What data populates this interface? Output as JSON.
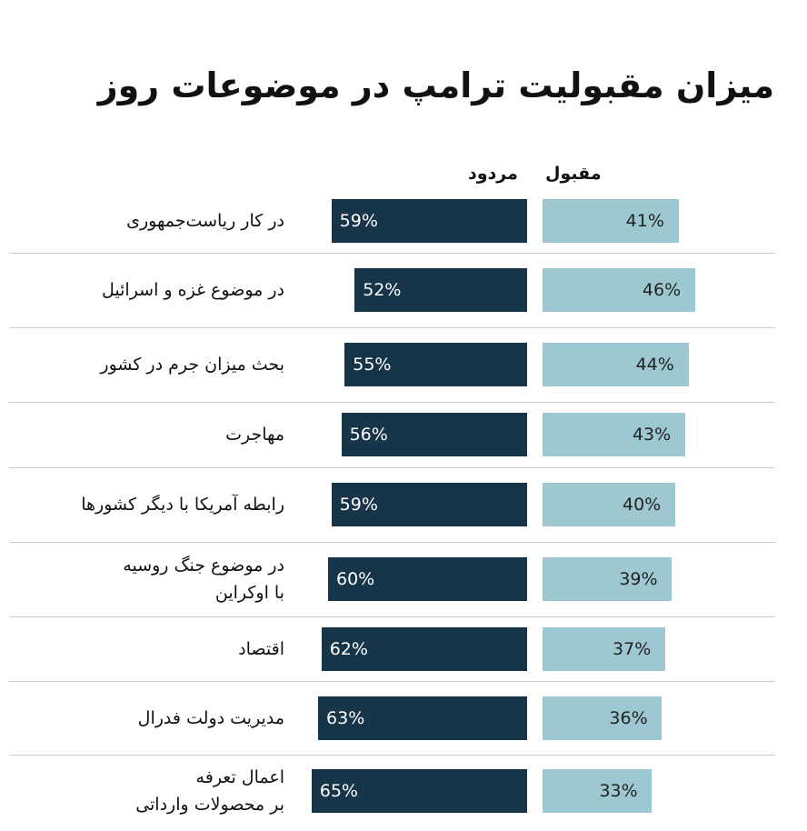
{
  "chart_data": {
    "type": "bar",
    "title": "میزان مقبولیت ترامپ در موضوعات روز",
    "categories": [
      "در کار ریاست‌جمهوری",
      "در موضوع غزه و اسرائیل",
      "بحث میزان جرم در کشور",
      "مهاجرت",
      "رابطه آمریکا با دیگر کشورها",
      "در موضوع جنگ روسیه\nبا اوکراین",
      "اقتصاد",
      "مدیریت دولت فدرال",
      "اعمال تعرفه\nبر محصولات وارداتی"
    ],
    "series": [
      {
        "name": "مقبول",
        "color": "#9dc8d1",
        "values": [
          41,
          46,
          44,
          43,
          40,
          39,
          37,
          36,
          33
        ],
        "value_labels": [
          "41%",
          "46%",
          "44%",
          "43%",
          "40%",
          "39%",
          "37%",
          "36%",
          "33%"
        ]
      },
      {
        "name": "مردود",
        "color": "#173548",
        "values": [
          59,
          52,
          55,
          56,
          59,
          60,
          62,
          63,
          65
        ],
        "value_labels": [
          "59%",
          "52%",
          "55%",
          "56%",
          "59%",
          "60%",
          "62%",
          "63%",
          "65%"
        ]
      }
    ]
  }
}
